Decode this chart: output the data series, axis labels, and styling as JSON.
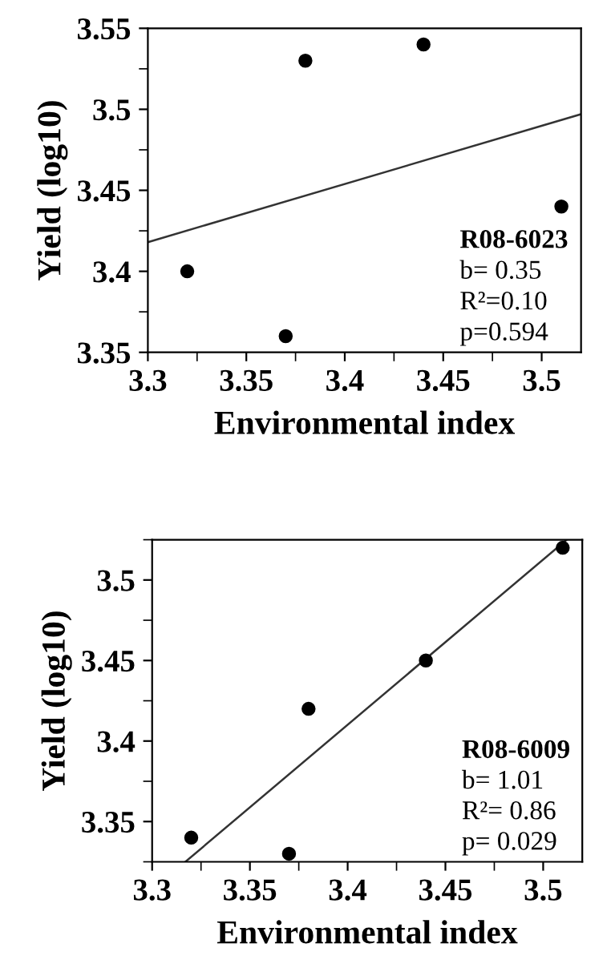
{
  "chart_data": [
    {
      "type": "scatter",
      "xlabel": "Environmental index",
      "ylabel": "Yield (log10)",
      "xlim": [
        3.3,
        3.52
      ],
      "ylim": [
        3.35,
        3.55
      ],
      "xticks": [
        3.3,
        {
          "value": 3.325,
          "label": null
        },
        3.35,
        {
          "value": 3.375,
          "label": null
        },
        3.4,
        {
          "value": 3.425,
          "label": null
        },
        3.45,
        {
          "value": 3.475,
          "label": null
        },
        3.5
      ],
      "yticks": [
        3.35,
        {
          "value": 3.375,
          "label": null
        },
        3.4,
        {
          "value": 3.425,
          "label": null
        },
        3.45,
        {
          "value": 3.475,
          "label": null
        },
        3.5,
        {
          "value": 3.525,
          "label": null
        },
        3.55
      ],
      "grid": false,
      "series": [
        {
          "marker": "circle",
          "color": "#000000",
          "x": [
            3.32,
            3.37,
            3.38,
            3.44,
            3.51
          ],
          "values": [
            3.4,
            3.36,
            3.53,
            3.54,
            3.44
          ]
        },
        {
          "type": "line",
          "color": "#333333",
          "x": [
            3.3,
            3.52
          ],
          "values": [
            3.418,
            3.497
          ]
        }
      ],
      "annotations": [
        "R08-6023",
        "b= 0.35",
        "R²=0.10",
        "p=0.594"
      ]
    },
    {
      "type": "scatter",
      "xlabel": "Environmental index",
      "ylabel": "Yield (log10)",
      "xlim": [
        3.3,
        3.52
      ],
      "ylim": [
        3.325,
        3.525
      ],
      "xticks": [
        3.3,
        {
          "value": 3.325,
          "label": null
        },
        3.35,
        {
          "value": 3.375,
          "label": null
        },
        3.4,
        {
          "value": 3.425,
          "label": null
        },
        3.45,
        {
          "value": 3.475,
          "label": null
        },
        3.5
      ],
      "yticks": [
        {
          "value": 3.325,
          "label": null
        },
        3.35,
        {
          "value": 3.375,
          "label": null
        },
        3.4,
        {
          "value": 3.425,
          "label": null
        },
        3.45,
        {
          "value": 3.475,
          "label": null
        },
        3.5,
        {
          "value": 3.525,
          "label": null
        }
      ],
      "grid": false,
      "series": [
        {
          "marker": "circle",
          "color": "#000000",
          "x": [
            3.32,
            3.37,
            3.38,
            3.44,
            3.51
          ],
          "values": [
            3.34,
            3.33,
            3.42,
            3.45,
            3.52
          ]
        },
        {
          "type": "line",
          "color": "#333333",
          "x": [
            3.317,
            3.512
          ],
          "values": [
            3.325,
            3.525
          ]
        }
      ],
      "annotations": [
        "R08-6009",
        "b= 1.01",
        "R²= 0.86",
        "p= 0.029"
      ]
    }
  ]
}
